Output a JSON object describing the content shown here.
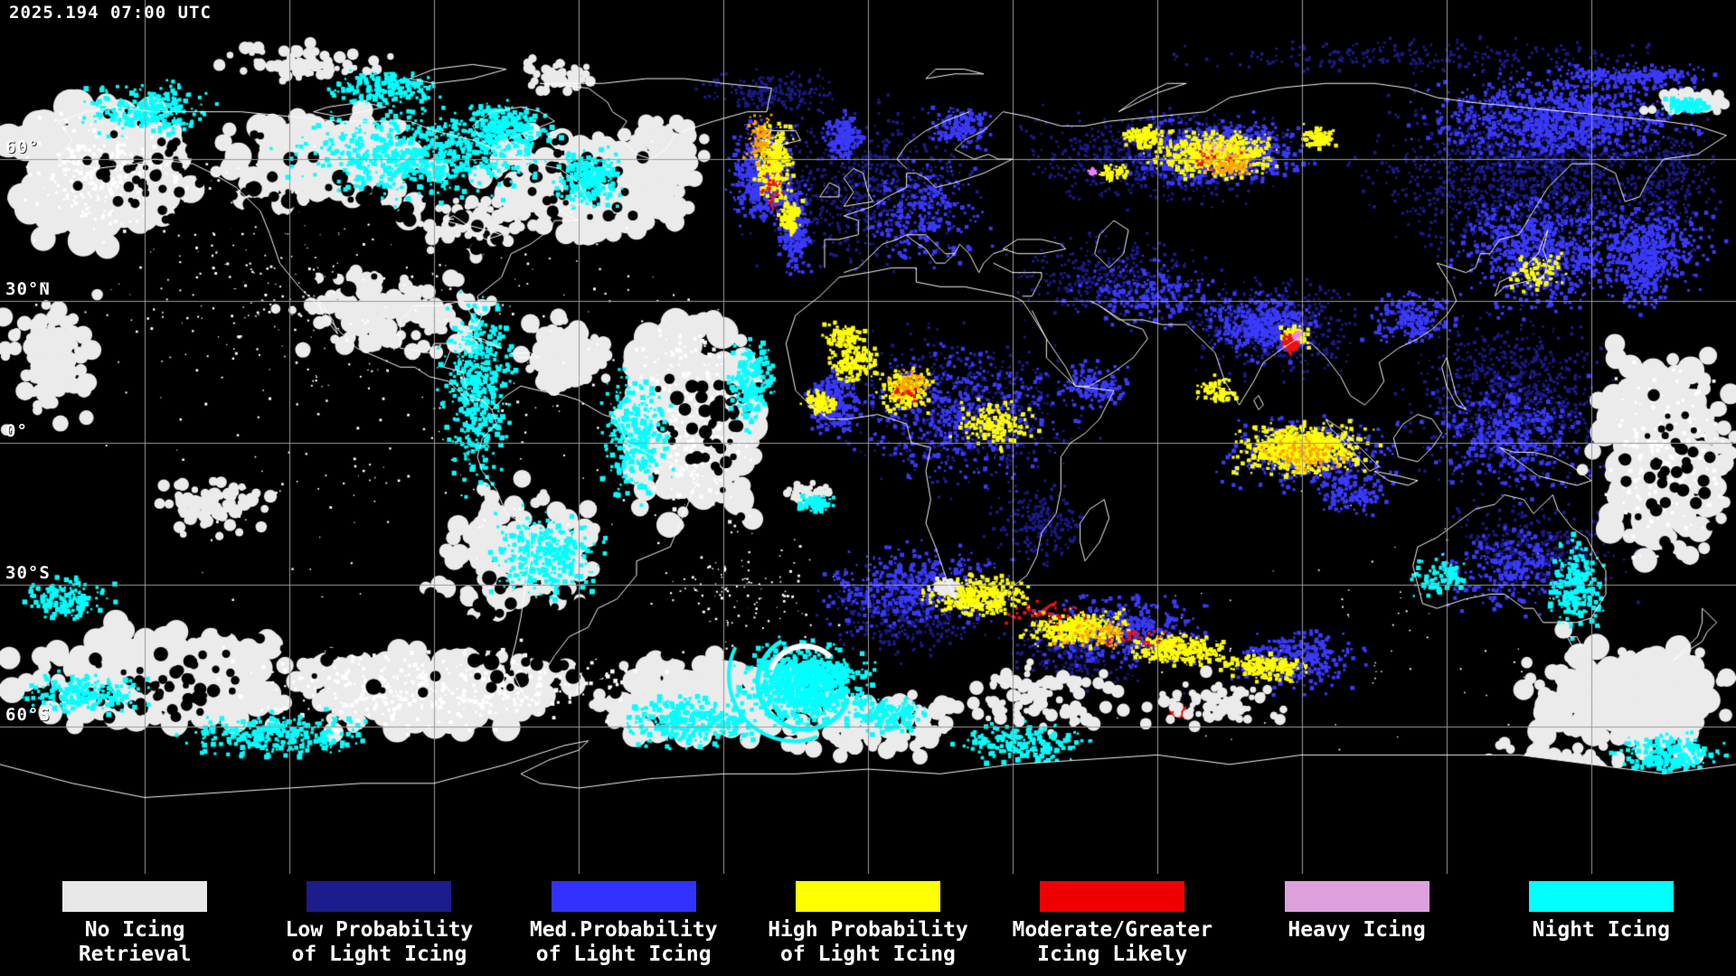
{
  "header": {
    "timestamp": "2025.194 07:00 UTC"
  },
  "map": {
    "lat_labels": [
      {
        "text": "60°",
        "lat": 60
      },
      {
        "text": "30°N",
        "lat": 30
      },
      {
        "text": "0°",
        "lat": 0
      },
      {
        "text": "30°S",
        "lat": -30
      },
      {
        "text": "60°S",
        "lat": -60
      }
    ],
    "colors": {
      "background": "#000000",
      "grid": "#9a9a9a",
      "coastline": "#ffffff",
      "cloud": "#ebebeb",
      "cloud_bright": "#ffffff",
      "night_low": "#1b1b8a",
      "night_med": "#3a3aff",
      "night_high": "#ffff00",
      "night_orange": "#ffa500",
      "icing_red": "#ee1111",
      "icing_pink": "#ee82ee",
      "night_cyan": "#00ffff"
    }
  },
  "legend": {
    "items": [
      {
        "color": "#e8e8e8",
        "line1": "No Icing",
        "line2": "Retrieval"
      },
      {
        "color": "#1c1c8c",
        "line1": "Low Probability",
        "line2": "of Light Icing"
      },
      {
        "color": "#3232ff",
        "line1": "Med.Probability",
        "line2": "of Light Icing"
      },
      {
        "color": "#ffff00",
        "line1": "High Probability",
        "line2": "of Light Icing"
      },
      {
        "color": "#ee0000",
        "line1": "Moderate/Greater",
        "line2": "Icing Likely"
      },
      {
        "color": "#dda0dd",
        "line1": "Heavy Icing",
        "line2": ""
      },
      {
        "color": "#00ffff",
        "line1": "Night Icing",
        "line2": ""
      }
    ]
  }
}
